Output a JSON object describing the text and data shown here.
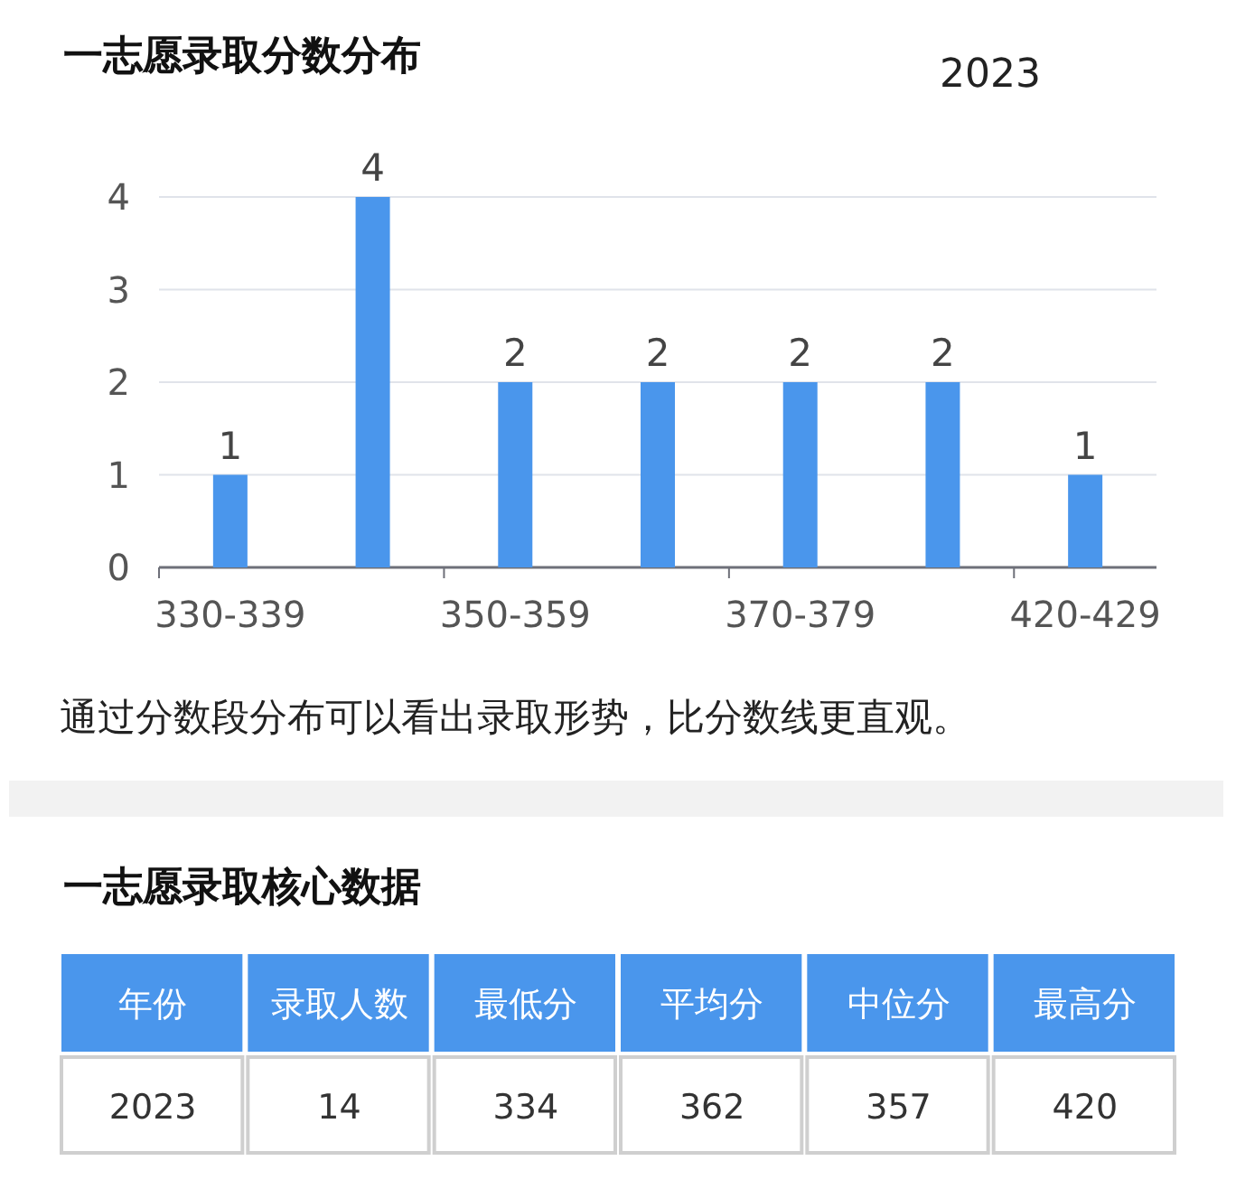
{
  "chart_data": [
    {
      "type": "bar",
      "title": "一志愿录取分数分布",
      "categories": [
        "330-339",
        null,
        "350-359",
        null,
        "370-379",
        null,
        "420-429"
      ],
      "values": [
        1,
        4,
        2,
        2,
        2,
        2,
        1
      ],
      "color": "#4a96ec",
      "ylim": [
        0,
        4
      ],
      "yticks": [
        0,
        1,
        2,
        3,
        4
      ],
      "grid": "y",
      "data_labels": true,
      "annotations": [
        "2023",
        "通过分数段分布可以看出录取形势，比分数线更直观。"
      ]
    },
    {
      "type": "other",
      "title": "一志愿录取核心数据",
      "categories": [
        "年份",
        "录取人数",
        "最低分",
        "平均分",
        "中位分",
        "最高分"
      ],
      "values": [
        2023,
        14,
        334,
        362,
        357,
        420
      ],
      "data_labels": true
    }
  ]
}
